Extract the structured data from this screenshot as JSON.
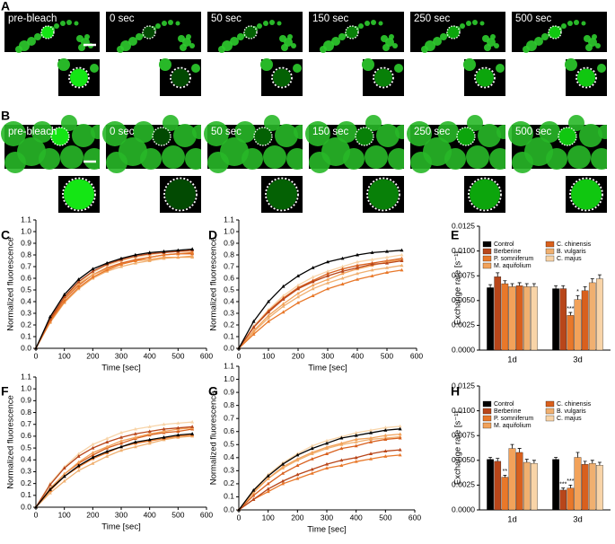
{
  "image_panels": [
    {
      "panel": "A",
      "times": [
        "pre-bleach",
        "0 sec",
        "50 sec",
        "150 sec",
        "250 sec",
        "500 sec"
      ]
    },
    {
      "panel": "B",
      "times": [
        "pre-bleach",
        "0 sec",
        "50 sec",
        "150 sec",
        "250 sec",
        "500 sec"
      ]
    }
  ],
  "chart_data": [
    {
      "type": "line",
      "panel": "C",
      "x_label": "Time [sec]",
      "y_label": "Normalized fluorescence",
      "x": [
        0,
        50,
        100,
        150,
        200,
        250,
        300,
        350,
        400,
        450,
        500,
        550
      ],
      "xlim": [
        0,
        600
      ],
      "xticks": [
        0,
        100,
        200,
        300,
        400,
        500,
        600
      ],
      "ylim": [
        0,
        1.1
      ],
      "yticks": [
        {
          "value": 0,
          "label": "0.0"
        },
        0.1,
        0.2,
        0.3,
        0.4,
        0.5,
        0.6,
        0.7,
        0.8,
        0.9,
        {
          "value": 1,
          "label": "1.0"
        },
        1.1
      ],
      "series": [
        {
          "color": "#000000",
          "values": [
            0,
            0.27,
            0.46,
            0.59,
            0.68,
            0.73,
            0.77,
            0.8,
            0.82,
            0.83,
            0.84,
            0.85
          ]
        },
        {
          "color": "#b8461a",
          "values": [
            0,
            0.25,
            0.44,
            0.57,
            0.66,
            0.72,
            0.76,
            0.79,
            0.81,
            0.82,
            0.83,
            0.84
          ]
        },
        {
          "color": "#e8782a",
          "values": [
            0,
            0.23,
            0.4,
            0.52,
            0.61,
            0.67,
            0.72,
            0.75,
            0.78,
            0.8,
            0.81,
            0.82
          ]
        },
        {
          "color": "#f2a25a",
          "values": [
            0,
            0.26,
            0.43,
            0.55,
            0.63,
            0.68,
            0.72,
            0.75,
            0.76,
            0.78,
            0.78,
            0.79
          ]
        },
        {
          "color": "#d8601e",
          "values": [
            0,
            0.24,
            0.42,
            0.54,
            0.63,
            0.69,
            0.73,
            0.76,
            0.78,
            0.8,
            0.81,
            0.81
          ]
        },
        {
          "color": "#f0b070",
          "values": [
            0,
            0.22,
            0.39,
            0.51,
            0.6,
            0.66,
            0.7,
            0.73,
            0.75,
            0.77,
            0.78,
            0.78
          ]
        },
        {
          "color": "#f8d4a8",
          "values": [
            0,
            0.25,
            0.43,
            0.56,
            0.65,
            0.71,
            0.75,
            0.78,
            0.8,
            0.82,
            0.83,
            0.83
          ]
        }
      ]
    },
    {
      "type": "line",
      "panel": "D",
      "x_label": "Time [sec]",
      "y_label": "Normalized fluorescence",
      "x": [
        0,
        50,
        100,
        150,
        200,
        250,
        300,
        350,
        400,
        450,
        500,
        550
      ],
      "xlim": [
        0,
        600
      ],
      "xticks": [
        0,
        100,
        200,
        300,
        400,
        500,
        600
      ],
      "ylim": [
        0,
        1.1
      ],
      "yticks": [
        {
          "value": 0,
          "label": "0.0"
        },
        0.1,
        0.2,
        0.3,
        0.4,
        0.5,
        0.6,
        0.7,
        0.8,
        0.9,
        {
          "value": 1,
          "label": "1.0"
        },
        1.1
      ],
      "series": [
        {
          "color": "#000000",
          "values": [
            0,
            0.23,
            0.4,
            0.53,
            0.62,
            0.69,
            0.74,
            0.77,
            0.8,
            0.82,
            0.83,
            0.84
          ]
        },
        {
          "color": "#b8461a",
          "values": [
            0,
            0.18,
            0.31,
            0.42,
            0.51,
            0.57,
            0.62,
            0.66,
            0.69,
            0.72,
            0.73,
            0.75
          ]
        },
        {
          "color": "#e8782a",
          "values": [
            0,
            0.12,
            0.23,
            0.31,
            0.39,
            0.45,
            0.51,
            0.55,
            0.59,
            0.62,
            0.65,
            0.67
          ]
        },
        {
          "color": "#f2a25a",
          "values": [
            0,
            0.15,
            0.28,
            0.38,
            0.47,
            0.54,
            0.59,
            0.64,
            0.68,
            0.71,
            0.74,
            0.76
          ]
        },
        {
          "color": "#d8601e",
          "values": [
            0,
            0.18,
            0.32,
            0.43,
            0.52,
            0.58,
            0.64,
            0.68,
            0.71,
            0.73,
            0.75,
            0.77
          ]
        },
        {
          "color": "#f0b070",
          "values": [
            0,
            0.14,
            0.26,
            0.36,
            0.44,
            0.51,
            0.56,
            0.6,
            0.64,
            0.67,
            0.69,
            0.71
          ]
        },
        {
          "color": "#f8d4a8",
          "values": [
            0,
            0.19,
            0.33,
            0.45,
            0.54,
            0.61,
            0.66,
            0.7,
            0.74,
            0.76,
            0.78,
            0.8
          ]
        }
      ]
    },
    {
      "type": "bar",
      "panel": "E",
      "y_label": "Exchange rate [s⁻¹]",
      "categories": [
        "1d",
        "3d"
      ],
      "ylim": [
        0,
        0.0125
      ],
      "yticks": [
        {
          "value": 0,
          "label": "0.0000"
        },
        0.0025,
        {
          "value": 0.005,
          "label": "0.0050"
        },
        {
          "value": 0.0075,
          "label": "0.0075"
        },
        {
          "value": 0.01,
          "label": "0.0100"
        },
        0.0125
      ],
      "series": [
        {
          "name": "Control",
          "color": "#000000",
          "values": [
            0.0063,
            0.0062
          ],
          "errors": [
            0.0003,
            0.0003
          ]
        },
        {
          "name": "Berberine",
          "color": "#b8461a",
          "values": [
            0.0074,
            0.0062
          ],
          "errors": [
            0.0004,
            0.0003
          ]
        },
        {
          "name": "P. somniferum",
          "color": "#e8782a",
          "values": [
            0.0067,
            0.0035
          ],
          "errors": [
            0.0003,
            0.0003
          ],
          "significance": [
            null,
            "***"
          ]
        },
        {
          "name": "M. aquifolium",
          "color": "#f2a25a",
          "values": [
            0.0064,
            0.0051
          ],
          "errors": [
            0.0003,
            0.0004
          ],
          "significance": [
            null,
            "*"
          ]
        },
        {
          "name": "C. chinensis",
          "color": "#d8601e",
          "values": [
            0.0065,
            0.006
          ],
          "errors": [
            0.0003,
            0.0004
          ]
        },
        {
          "name": "B. vulgaris",
          "color": "#f0b070",
          "values": [
            0.0064,
            0.0068
          ],
          "errors": [
            0.0003,
            0.0004
          ]
        },
        {
          "name": "C. majus",
          "color": "#f8d4a8",
          "values": [
            0.0064,
            0.0072
          ],
          "errors": [
            0.0003,
            0.0004
          ]
        }
      ]
    },
    {
      "type": "line",
      "panel": "F",
      "x_label": "Time [sec]",
      "y_label": "Normalized fluorescence",
      "x": [
        0,
        50,
        100,
        150,
        200,
        250,
        300,
        350,
        400,
        450,
        500,
        550
      ],
      "xlim": [
        0,
        600
      ],
      "xticks": [
        0,
        100,
        200,
        300,
        400,
        500,
        600
      ],
      "ylim": [
        0,
        1.1
      ],
      "yticks": [
        {
          "value": 0,
          "label": "0.0"
        },
        0.1,
        0.2,
        0.3,
        0.4,
        0.5,
        0.6,
        0.7,
        0.8,
        0.9,
        {
          "value": 1,
          "label": "1.0"
        },
        1.1
      ],
      "series": [
        {
          "color": "#000000",
          "values": [
            0,
            0.15,
            0.26,
            0.35,
            0.42,
            0.47,
            0.51,
            0.55,
            0.57,
            0.59,
            0.61,
            0.62
          ]
        },
        {
          "color": "#b8461a",
          "values": [
            0,
            0.19,
            0.33,
            0.43,
            0.5,
            0.55,
            0.59,
            0.62,
            0.64,
            0.66,
            0.67,
            0.68
          ]
        },
        {
          "color": "#e8782a",
          "values": [
            0,
            0.14,
            0.26,
            0.34,
            0.41,
            0.46,
            0.51,
            0.54,
            0.56,
            0.58,
            0.6,
            0.61
          ]
        },
        {
          "color": "#f2a25a",
          "values": [
            0,
            0.16,
            0.28,
            0.38,
            0.46,
            0.51,
            0.56,
            0.59,
            0.62,
            0.64,
            0.66,
            0.67
          ]
        },
        {
          "color": "#d8601e",
          "values": [
            0,
            0.15,
            0.28,
            0.37,
            0.44,
            0.5,
            0.54,
            0.58,
            0.61,
            0.63,
            0.64,
            0.66
          ]
        },
        {
          "color": "#f0b070",
          "values": [
            0,
            0.12,
            0.22,
            0.31,
            0.37,
            0.43,
            0.48,
            0.51,
            0.54,
            0.57,
            0.59,
            0.6
          ]
        },
        {
          "color": "#f8d4a8",
          "values": [
            0,
            0.2,
            0.34,
            0.45,
            0.53,
            0.58,
            0.63,
            0.66,
            0.68,
            0.7,
            0.71,
            0.72
          ]
        }
      ]
    },
    {
      "type": "line",
      "panel": "G",
      "x_label": "Time [sec]",
      "y_label": "Normalized fluorescence",
      "x": [
        0,
        50,
        100,
        150,
        200,
        250,
        300,
        350,
        400,
        450,
        500,
        550
      ],
      "xlim": [
        0,
        600
      ],
      "xticks": [
        0,
        100,
        200,
        300,
        400,
        500,
        600
      ],
      "ylim": [
        0,
        1.1
      ],
      "yticks": [
        {
          "value": 0,
          "label": "0.0"
        },
        0.1,
        0.2,
        0.3,
        0.4,
        0.5,
        0.6,
        0.7,
        0.8,
        0.9,
        {
          "value": 1,
          "label": "1.0"
        },
        1.1
      ],
      "series": [
        {
          "color": "#000000",
          "values": [
            0,
            0.15,
            0.26,
            0.35,
            0.42,
            0.47,
            0.51,
            0.55,
            0.57,
            0.59,
            0.61,
            0.62
          ]
        },
        {
          "color": "#b8461a",
          "values": [
            0,
            0.08,
            0.16,
            0.22,
            0.27,
            0.31,
            0.35,
            0.38,
            0.4,
            0.43,
            0.45,
            0.46
          ]
        },
        {
          "color": "#e8782a",
          "values": [
            0,
            0.08,
            0.14,
            0.2,
            0.24,
            0.28,
            0.32,
            0.34,
            0.37,
            0.39,
            0.41,
            0.42
          ]
        },
        {
          "color": "#f2a25a",
          "values": [
            0,
            0.14,
            0.24,
            0.33,
            0.39,
            0.44,
            0.48,
            0.51,
            0.54,
            0.55,
            0.57,
            0.58
          ]
        },
        {
          "color": "#d8601e",
          "values": [
            0,
            0.11,
            0.2,
            0.28,
            0.34,
            0.39,
            0.43,
            0.47,
            0.49,
            0.52,
            0.54,
            0.55
          ]
        },
        {
          "color": "#f0b070",
          "values": [
            0,
            0.13,
            0.24,
            0.32,
            0.38,
            0.43,
            0.47,
            0.5,
            0.52,
            0.54,
            0.55,
            0.56
          ]
        },
        {
          "color": "#f8d4a8",
          "values": [
            0,
            0.15,
            0.27,
            0.36,
            0.43,
            0.49,
            0.53,
            0.56,
            0.59,
            0.61,
            0.63,
            0.64
          ]
        }
      ]
    },
    {
      "type": "bar",
      "panel": "H",
      "y_label": "Exchange rate [s⁻¹]",
      "categories": [
        "1d",
        "3d"
      ],
      "ylim": [
        0,
        0.0125
      ],
      "yticks": [
        {
          "value": 0,
          "label": "0.0000"
        },
        0.0025,
        {
          "value": 0.005,
          "label": "0.0050"
        },
        {
          "value": 0.0075,
          "label": "0.0075"
        },
        {
          "value": 0.01,
          "label": "0.0100"
        },
        0.0125
      ],
      "series": [
        {
          "name": "Control",
          "color": "#000000",
          "values": [
            0.0051,
            0.0051
          ],
          "errors": [
            0.0002,
            0.0002
          ]
        },
        {
          "name": "Berberine",
          "color": "#b8461a",
          "values": [
            0.0049,
            0.002
          ],
          "errors": [
            0.0003,
            0.0002
          ],
          "significance": [
            null,
            "***"
          ]
        },
        {
          "name": "P. somniferum",
          "color": "#e8782a",
          "values": [
            0.0033,
            0.0022
          ],
          "errors": [
            0.0002,
            0.0003
          ],
          "significance": [
            "**",
            "***"
          ]
        },
        {
          "name": "M. aquifolium",
          "color": "#f2a25a",
          "values": [
            0.0062,
            0.0053
          ],
          "errors": [
            0.0004,
            0.0005
          ]
        },
        {
          "name": "C. chinensis",
          "color": "#d8601e",
          "values": [
            0.0058,
            0.0046
          ],
          "errors": [
            0.0004,
            0.0003
          ]
        },
        {
          "name": "B. vulgaris",
          "color": "#f0b070",
          "values": [
            0.0048,
            0.0047
          ],
          "errors": [
            0.0003,
            0.0003
          ]
        },
        {
          "name": "C. majus",
          "color": "#f8d4a8",
          "values": [
            0.0047,
            0.0045
          ],
          "errors": [
            0.0003,
            0.0003
          ]
        }
      ]
    }
  ]
}
